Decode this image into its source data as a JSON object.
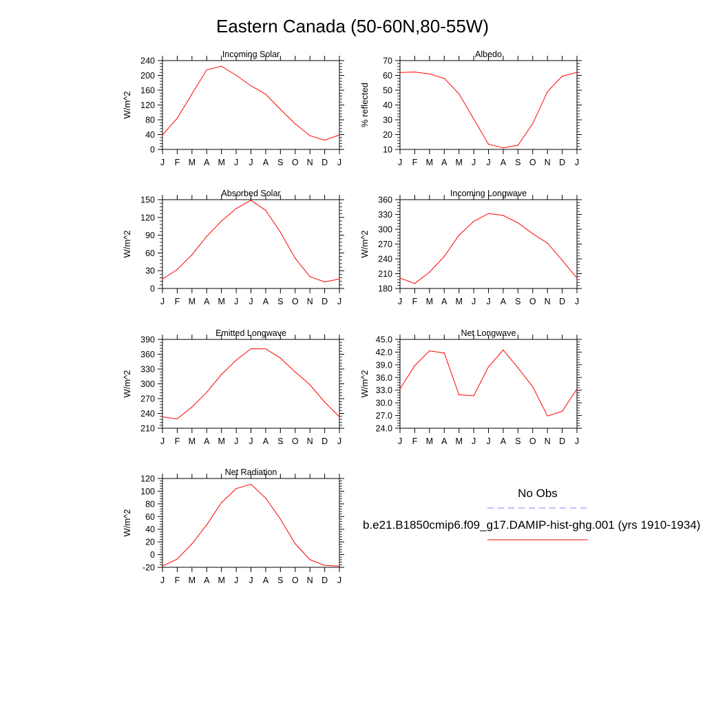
{
  "page_title": "Eastern Canada (50-60N,80-55W)",
  "months": [
    "J",
    "F",
    "M",
    "A",
    "M",
    "J",
    "J",
    "A",
    "S",
    "O",
    "N",
    "D",
    "J"
  ],
  "series_color": "#ff0000",
  "obs_color": "#8080ff",
  "legend": {
    "obs_label": "No Obs",
    "model_label": "b.e21.B1850cmip6.f09_g17.DAMIP-hist-ghg.001 (yrs 1910-1934)"
  },
  "chart_data": [
    {
      "type": "line",
      "title": "Incoming Solar",
      "ylabel": "W/m^2",
      "ylim": [
        0,
        240
      ],
      "yticks": [
        "0",
        "40",
        "80",
        "120",
        "160",
        "200",
        "240"
      ],
      "x": [
        "J",
        "F",
        "M",
        "A",
        "M",
        "J",
        "J",
        "A",
        "S",
        "O",
        "N",
        "D",
        "J"
      ],
      "values": [
        39,
        84,
        150,
        215,
        225,
        200,
        172,
        149,
        108,
        69,
        37,
        25,
        39
      ]
    },
    {
      "type": "line",
      "title": "Albedo",
      "ylabel": "% reflected",
      "ylim": [
        10,
        70
      ],
      "yticks": [
        "10",
        "20",
        "30",
        "40",
        "50",
        "60",
        "70"
      ],
      "x": [
        "J",
        "F",
        "M",
        "A",
        "M",
        "J",
        "J",
        "A",
        "S",
        "O",
        "N",
        "D",
        "J"
      ],
      "values": [
        62,
        62.3,
        61,
        58,
        47.5,
        30.5,
        13.5,
        11,
        12.8,
        27.5,
        49,
        59.5,
        62
      ]
    },
    {
      "type": "line",
      "title": "Absorbed Solar",
      "ylabel": "W/m^2",
      "ylim": [
        0,
        150
      ],
      "yticks": [
        "0",
        "30",
        "60",
        "90",
        "120",
        "150"
      ],
      "x": [
        "J",
        "F",
        "M",
        "A",
        "M",
        "J",
        "J",
        "A",
        "S",
        "O",
        "N",
        "D",
        "J"
      ],
      "values": [
        16,
        32,
        57,
        88,
        114,
        135,
        149,
        132,
        95,
        51,
        20,
        11,
        16
      ]
    },
    {
      "type": "line",
      "title": "Incoming Longwave",
      "ylabel": "W/m^2",
      "ylim": [
        180,
        360
      ],
      "yticks": [
        "180",
        "210",
        "240",
        "270",
        "300",
        "330",
        "360"
      ],
      "x": [
        "J",
        "F",
        "M",
        "A",
        "M",
        "J",
        "J",
        "A",
        "S",
        "O",
        "N",
        "D",
        "J"
      ],
      "values": [
        201,
        190,
        213,
        245,
        288,
        316,
        332,
        328,
        313,
        291,
        272,
        237,
        201
      ]
    },
    {
      "type": "line",
      "title": "Emitted Longwave",
      "ylabel": "W/m^2",
      "ylim": [
        210,
        390
      ],
      "yticks": [
        "210",
        "240",
        "270",
        "300",
        "330",
        "360",
        "390"
      ],
      "x": [
        "J",
        "F",
        "M",
        "A",
        "M",
        "J",
        "J",
        "A",
        "S",
        "O",
        "N",
        "D",
        "J"
      ],
      "values": [
        233,
        229,
        253,
        283,
        319,
        348,
        371,
        371,
        352,
        324,
        298,
        263,
        233
      ]
    },
    {
      "type": "line",
      "title": "Net Longwave",
      "ylabel": "W/m^2",
      "ylim": [
        24,
        45
      ],
      "yticks": [
        "24.0",
        "27.0",
        "30.0",
        "33.0",
        "36.0",
        "39.0",
        "42.0",
        "45.0"
      ],
      "x": [
        "J",
        "F",
        "M",
        "A",
        "M",
        "J",
        "J",
        "A",
        "S",
        "O",
        "N",
        "D",
        "J"
      ],
      "values": [
        33.3,
        38.8,
        42.3,
        41.8,
        31.9,
        31.7,
        38.5,
        42.5,
        38.3,
        33.8,
        26.9,
        28.0,
        33.3
      ]
    },
    {
      "type": "line",
      "title": "Net Radiation",
      "ylabel": "W/m^2",
      "ylim": [
        -20,
        120
      ],
      "yticks": [
        "-20",
        "0",
        "20",
        "40",
        "60",
        "80",
        "100",
        "120"
      ],
      "x": [
        "J",
        "F",
        "M",
        "A",
        "M",
        "J",
        "J",
        "A",
        "S",
        "O",
        "N",
        "D",
        "J"
      ],
      "values": [
        -18,
        -7,
        17,
        47,
        82,
        104,
        111,
        89,
        56,
        17,
        -8,
        -17,
        -18
      ]
    }
  ]
}
